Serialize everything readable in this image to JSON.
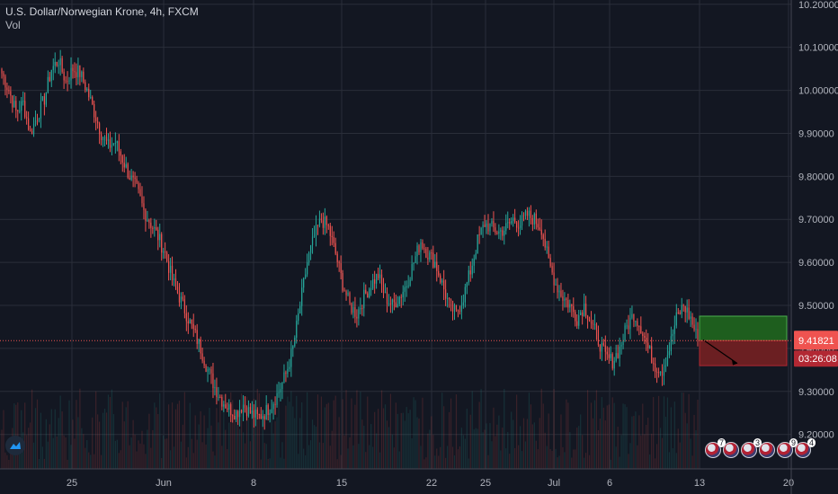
{
  "legend": {
    "symbol": "U.S. Dollar/Norwegian Krone, 4h, FXCM",
    "indicator": "Vol"
  },
  "price_labels": {
    "current": "9.41821",
    "countdown": "03:26:08"
  },
  "events": [
    "7",
    "3",
    "9",
    "4"
  ],
  "colors": {
    "background": "#131722",
    "grid": "#2a2e39",
    "up": "#26a69a",
    "down": "#ef5350",
    "price_line": "#ef5350",
    "target_zone": "#1e5e1e",
    "stop_zone": "#6b1f22"
  },
  "chart_data": {
    "type": "candlestick",
    "title": "U.S. Dollar/Norwegian Krone, 4h, FXCM",
    "x_ticks": [
      "25",
      "Jun",
      "8",
      "15",
      "22",
      "25",
      "Jul",
      "6",
      "13",
      "20"
    ],
    "y_ticks": [
      "10.20000",
      "10.10000",
      "10.00000",
      "9.90000",
      "9.80000",
      "9.70000",
      "9.60000",
      "9.50000",
      "9.40000",
      "9.30000",
      "9.20000"
    ],
    "ylim": [
      9.12,
      10.21
    ],
    "grid": true,
    "last_price": 9.41821,
    "target_zone": [
      9.418,
      9.475
    ],
    "stop_zone": [
      9.36,
      9.418
    ],
    "projected_arrow": {
      "from": 9.42,
      "to": 9.365
    },
    "close_path": [
      10.04,
      10.0,
      9.95,
      9.97,
      9.9,
      9.94,
      9.98,
      10.05,
      10.07,
      10.02,
      10.05,
      10.04,
      10.0,
      9.95,
      9.9,
      9.87,
      9.88,
      9.84,
      9.8,
      9.77,
      9.72,
      9.69,
      9.66,
      9.62,
      9.56,
      9.52,
      9.48,
      9.44,
      9.4,
      9.35,
      9.31,
      9.28,
      9.26,
      9.25,
      9.27,
      9.25,
      9.24,
      9.25,
      9.27,
      9.3,
      9.34,
      9.4,
      9.5,
      9.6,
      9.66,
      9.7,
      9.68,
      9.62,
      9.55,
      9.5,
      9.48,
      9.52,
      9.55,
      9.57,
      9.52,
      9.5,
      9.52,
      9.55,
      9.6,
      9.65,
      9.62,
      9.6,
      9.55,
      9.5,
      9.48,
      9.52,
      9.58,
      9.65,
      9.69,
      9.68,
      9.67,
      9.68,
      9.7,
      9.69,
      9.71,
      9.7,
      9.68,
      9.6,
      9.55,
      9.52,
      9.5,
      9.47,
      9.5,
      9.46,
      9.42,
      9.38,
      9.37,
      9.4,
      9.45,
      9.48,
      9.45,
      9.4,
      9.36,
      9.35,
      9.4,
      9.47,
      9.5,
      9.47,
      9.42
    ]
  }
}
